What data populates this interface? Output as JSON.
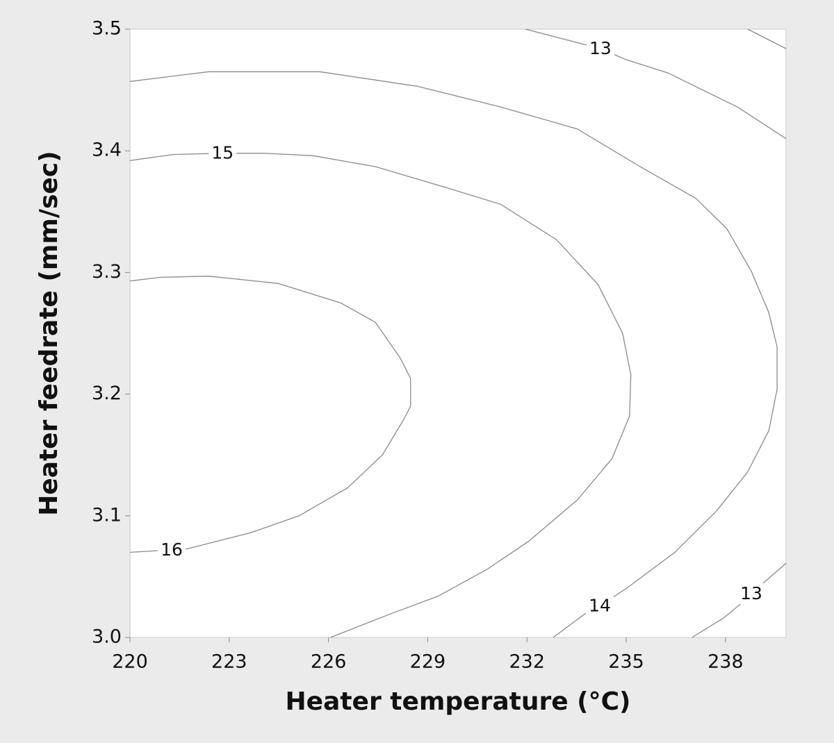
{
  "chart_data": {
    "type": "contour",
    "x_label": "Heater temperature (°C)",
    "y_label": "Heater feedrate (mm/sec)",
    "xlim": [
      220,
      239.83
    ],
    "ylim": [
      3,
      3.5
    ],
    "xticks": [
      220,
      223,
      226,
      229,
      232,
      235,
      238
    ],
    "yticks": [
      {
        "value": 3,
        "label": "3.0"
      },
      3.1,
      3.2,
      3.3,
      3.4,
      3.5
    ],
    "line_color": "#8a8a8a",
    "contours": [
      {
        "level": 13,
        "pieces": [
          {
            "x": [
              231.95,
              234.22,
              234.99,
              236.26,
              238.36,
              239.83
            ],
            "y": [
              3.5,
              3.484,
              3.475,
              3.464,
              3.436,
              3.41
            ]
          },
          {
            "x": [
              238.67,
              239.83
            ],
            "y": [
              3.5,
              3.484
            ]
          },
          {
            "x": [
              236.99,
              237.94,
              238.57,
              238.78,
              239.83
            ],
            "y": [
              3.0,
              3.016,
              3.03,
              3.036,
              3.061
            ]
          }
        ]
      },
      {
        "level": 14,
        "pieces": [
          {
            "x": [
              220,
              222.38,
              225.74,
              228.69,
              231.21,
              233.52,
              235.42,
              237.1,
              238.04,
              238.78,
              239.31,
              239.56,
              239.56,
              239.31,
              238.67,
              237.73,
              236.47,
              234.99,
              234.2,
              233.73,
              232.79
            ],
            "y": [
              3.457,
              3.465,
              3.465,
              3.453,
              3.436,
              3.418,
              3.387,
              3.361,
              3.336,
              3.301,
              3.267,
              3.239,
              3.204,
              3.17,
              3.136,
              3.104,
              3.07,
              3.04,
              3.026,
              3.019,
              3.0
            ]
          }
        ]
      },
      {
        "level": 15,
        "pieces": [
          {
            "x": [
              220,
              221.32,
              222.8,
              224.06,
              225.53,
              227.42,
              229.53,
              231.21,
              232.89,
              234.15,
              234.89,
              235.14,
              235.1,
              234.57,
              233.52,
              232.05,
              230.79,
              229.32,
              227.84,
              226.06
            ],
            "y": [
              3.392,
              3.397,
              3.398,
              3.398,
              3.396,
              3.387,
              3.37,
              3.356,
              3.327,
              3.29,
              3.25,
              3.216,
              3.182,
              3.147,
              3.113,
              3.079,
              3.056,
              3.034,
              3.019,
              3.0
            ]
          }
        ]
      },
      {
        "level": 16,
        "pieces": [
          {
            "x": [
              220,
              220.9,
              222.38,
              224.48,
              226.37,
              227.42,
              228.16,
              228.48,
              228.48,
              228.27,
              227.63,
              226.58,
              225.11,
              223.64,
              221.75,
              221.26,
              220
            ],
            "y": [
              3.293,
              3.296,
              3.297,
              3.291,
              3.275,
              3.259,
              3.23,
              3.213,
              3.19,
              3.179,
              3.15,
              3.123,
              3.1,
              3.086,
              3.073,
              3.072,
              3.07
            ]
          }
        ]
      }
    ]
  }
}
